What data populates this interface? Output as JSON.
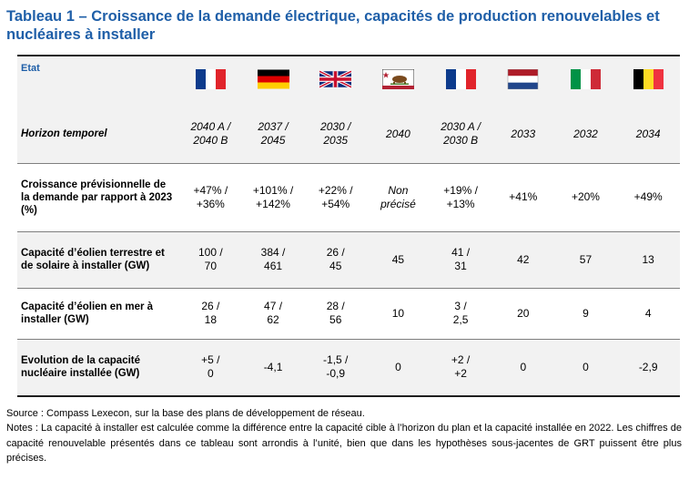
{
  "title": "Tableau 1 – Croissance de la demande électrique, capacités de production renouvelables et nucléaires à installer",
  "table": {
    "corner_label": "Etat",
    "flags": [
      {
        "icon": "flag-france-icon"
      },
      {
        "icon": "flag-germany-icon"
      },
      {
        "icon": "flag-united-kingdom-icon"
      },
      {
        "icon": "flag-california-icon"
      },
      {
        "icon": "flag-france-icon"
      },
      {
        "icon": "flag-netherlands-icon"
      },
      {
        "icon": "flag-italy-icon"
      },
      {
        "icon": "flag-belgium-icon"
      }
    ],
    "rows": [
      {
        "label": "Horizon temporel",
        "cells": [
          [
            "2040 A /",
            "2040 B"
          ],
          [
            "2037 /",
            "2045"
          ],
          [
            "2030 /",
            "2035"
          ],
          [
            "2040",
            ""
          ],
          [
            "2030 A /",
            "2030 B"
          ],
          [
            "2033",
            ""
          ],
          [
            "2032",
            ""
          ],
          [
            "2034",
            ""
          ]
        ]
      },
      {
        "label": "Croissance prévisionnelle de la demande par rapport à 2023 (%)",
        "cells": [
          [
            "+47% /",
            "+36%"
          ],
          [
            "+101% /",
            "+142%"
          ],
          [
            "+22% /",
            "+54%"
          ],
          [
            "Non",
            "précisé"
          ],
          [
            "+19% /",
            "+13%"
          ],
          [
            "+41%",
            ""
          ],
          [
            "+20%",
            ""
          ],
          [
            "+49%",
            ""
          ]
        ]
      },
      {
        "label": "Capacité d’éolien terrestre et de solaire à installer (GW)",
        "cells": [
          [
            "100 /",
            "70"
          ],
          [
            "384 /",
            "461"
          ],
          [
            "26 /",
            "45"
          ],
          [
            "45",
            ""
          ],
          [
            "41 /",
            "31"
          ],
          [
            "42",
            ""
          ],
          [
            "57",
            ""
          ],
          [
            "13",
            ""
          ]
        ]
      },
      {
        "label": "Capacité d’éolien en mer à installer (GW)",
        "cells": [
          [
            "26 /",
            "18"
          ],
          [
            "47 /",
            "62"
          ],
          [
            "28 /",
            "56"
          ],
          [
            "10",
            ""
          ],
          [
            "3 /",
            "2,5"
          ],
          [
            "20",
            ""
          ],
          [
            "9",
            ""
          ],
          [
            "4",
            ""
          ]
        ]
      },
      {
        "label": "Evolution de la capacité nucléaire installée (GW)",
        "cells": [
          [
            "+5 /",
            "0"
          ],
          [
            "-4,1",
            ""
          ],
          [
            "-1,5 /",
            "-0,9"
          ],
          [
            "0",
            ""
          ],
          [
            "+2 /",
            "+2"
          ],
          [
            "0",
            ""
          ],
          [
            "0",
            ""
          ],
          [
            "-2,9",
            ""
          ]
        ]
      }
    ]
  },
  "source": "Source : Compass Lexecon, sur la base des plans de développement de réseau.",
  "notes": "Notes : La capacité à installer est calculée comme la différence entre la capacité cible à l’horizon du plan et la capacité installée en 2022. Les chiffres de capacité renouvelable présentés dans ce tableau sont arrondis à l’unité, bien que dans les hypothèses sous-jacentes de GRT puissent être plus précises."
}
